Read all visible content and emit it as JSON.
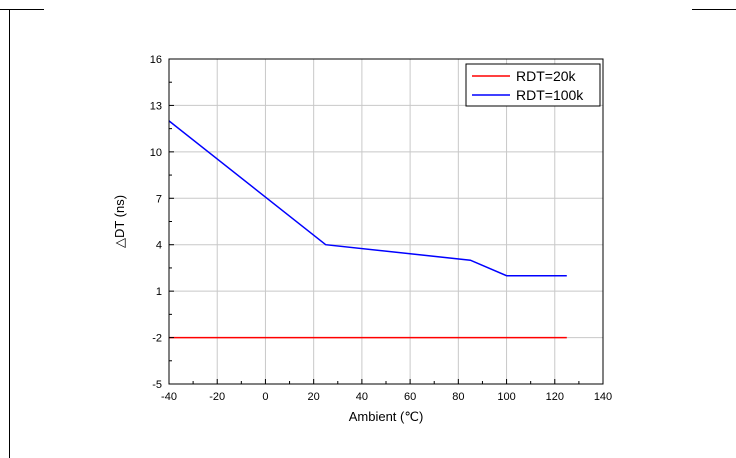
{
  "chart_data": {
    "type": "line",
    "xlabel": "Ambient (℃)",
    "ylabel": "△DT (ns)",
    "xlim": [
      -40,
      140
    ],
    "ylim": [
      -5,
      16
    ],
    "xticks": [
      -40,
      -20,
      0,
      20,
      40,
      60,
      80,
      100,
      120,
      140
    ],
    "yticks": [
      -5,
      -2,
      1,
      4,
      7,
      10,
      13,
      16
    ],
    "grid": true,
    "legend_position": "top-right",
    "series": [
      {
        "name": "RDT=20k",
        "color": "#ff0000",
        "x": [
          -40,
          125
        ],
        "y": [
          -2,
          -2
        ]
      },
      {
        "name": "RDT=100k",
        "color": "#0000ff",
        "x": [
          -40,
          25,
          85,
          100,
          125
        ],
        "y": [
          12,
          4,
          3,
          2,
          2
        ]
      }
    ]
  }
}
